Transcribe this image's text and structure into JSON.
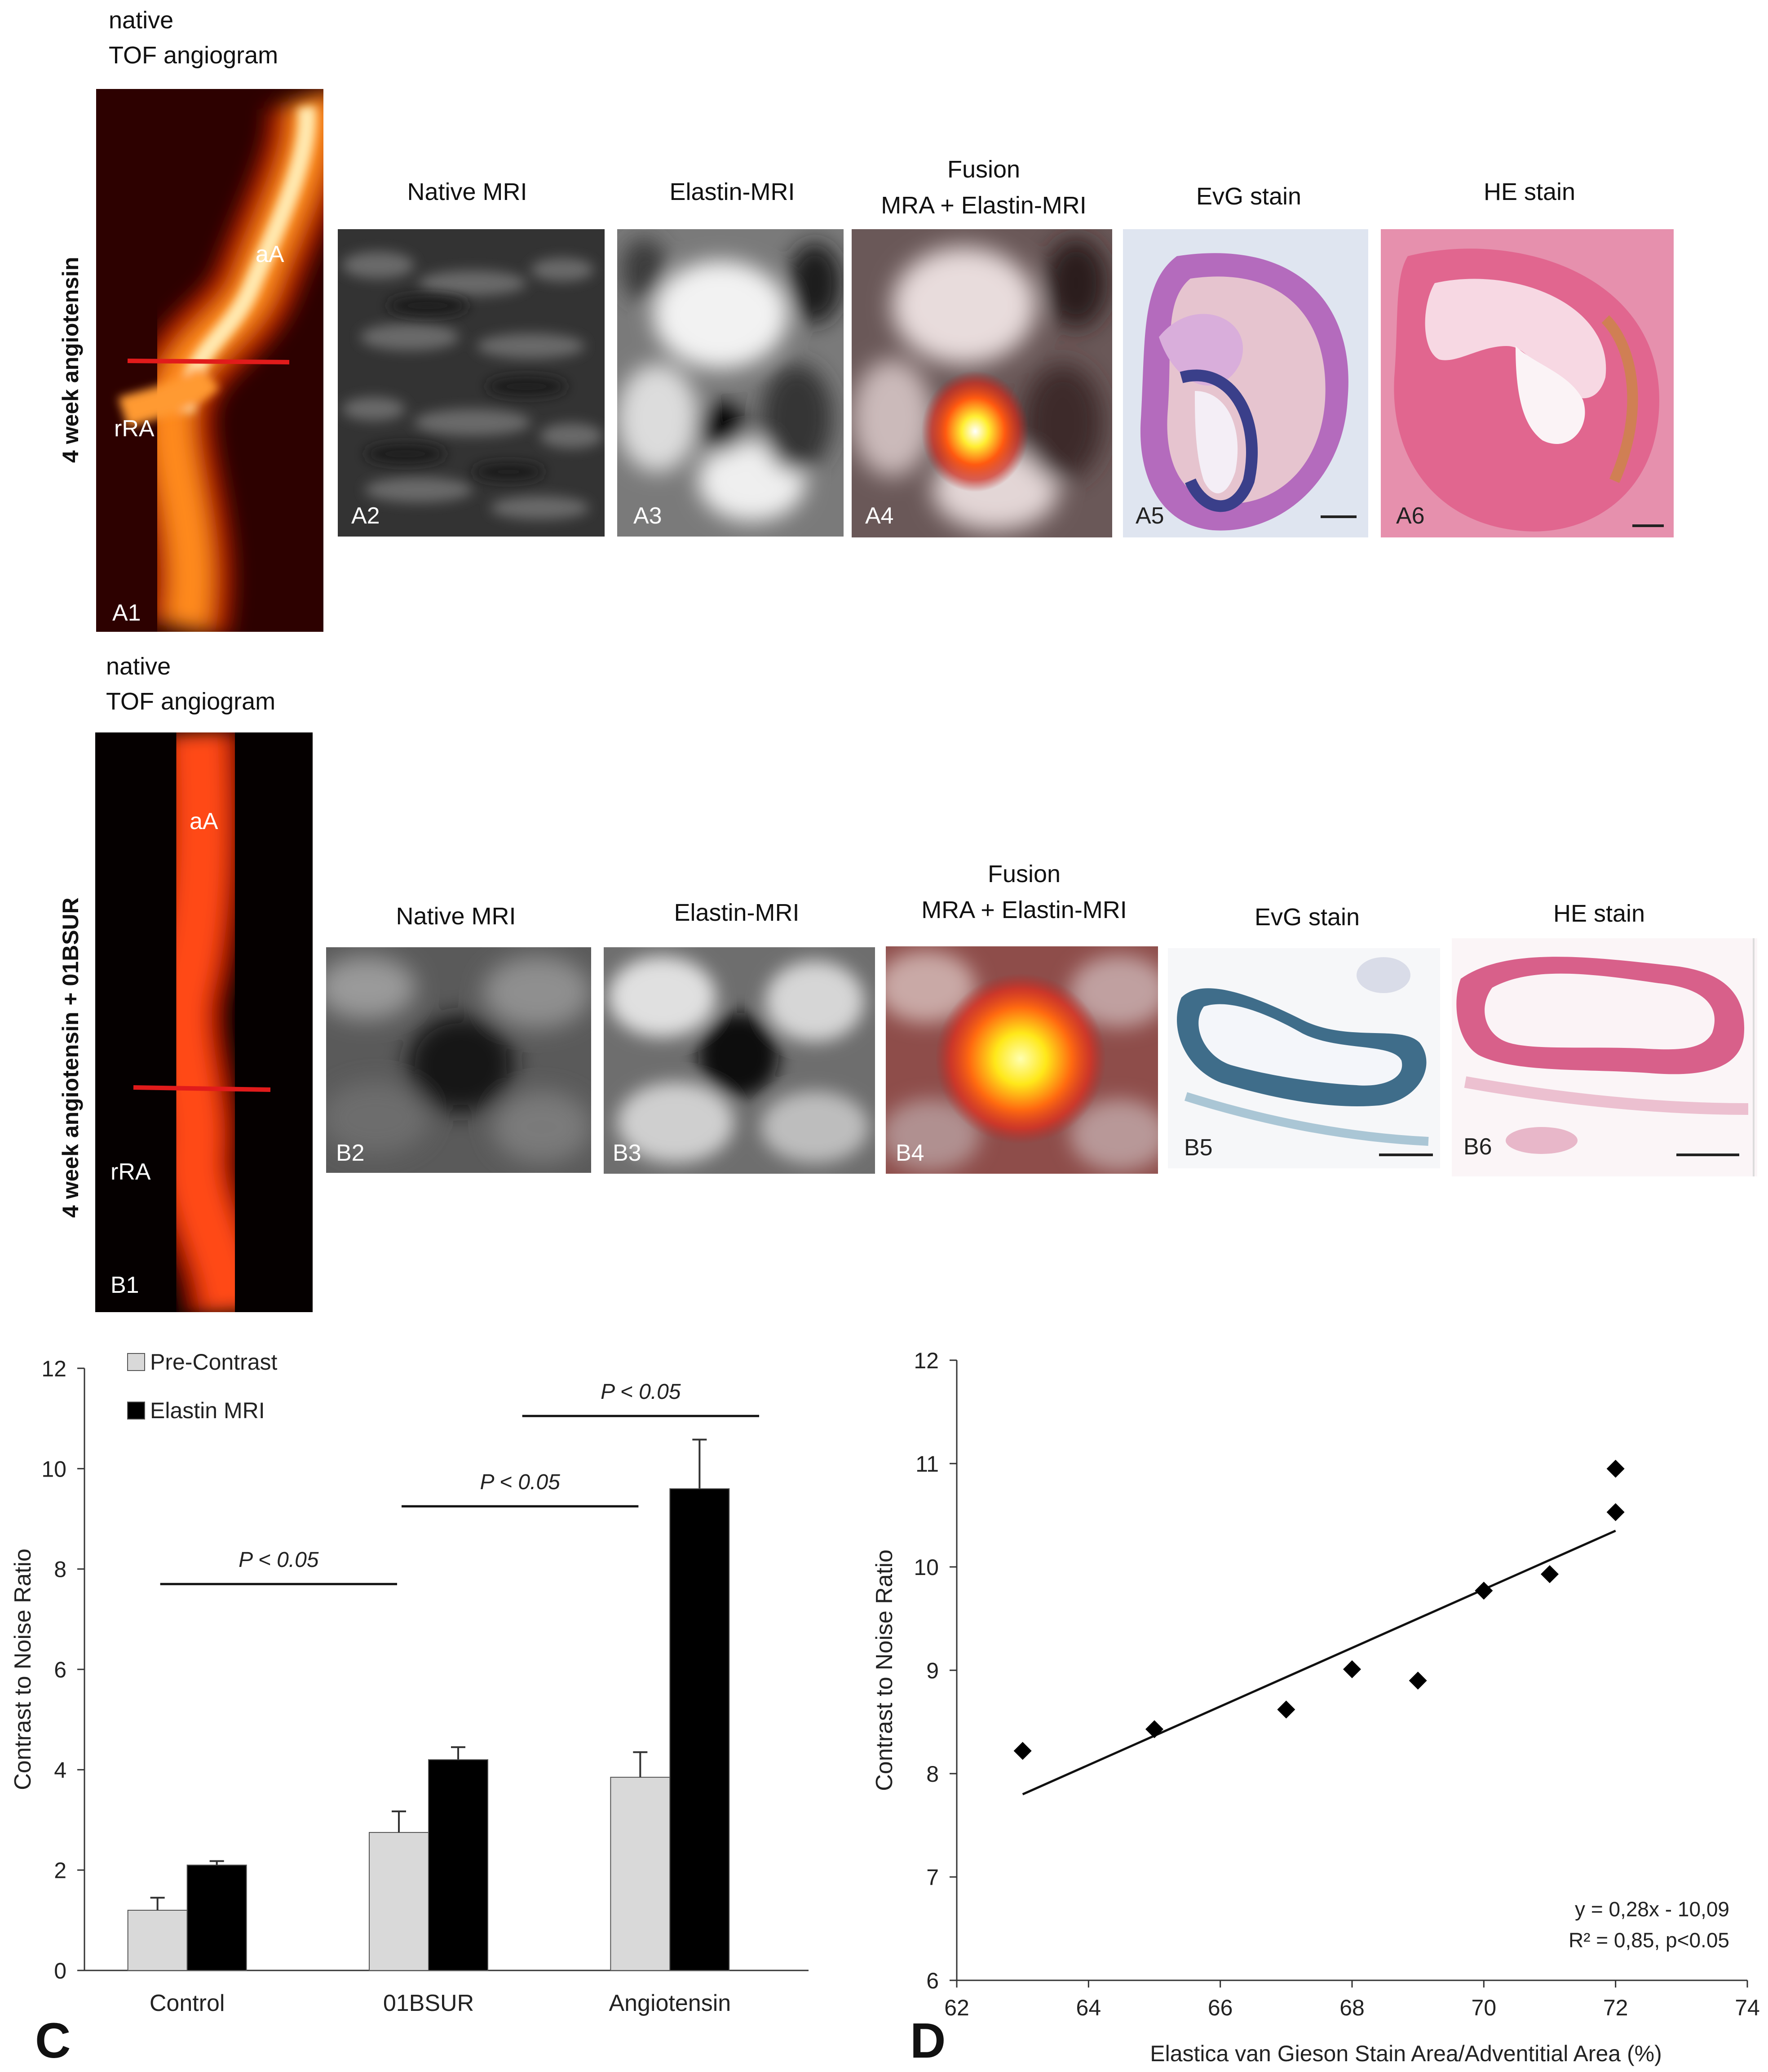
{
  "rowA": {
    "tof_line1": "native",
    "tof_line2": "TOF angiogram",
    "side_label": "4 week angiotensin",
    "label_aA": "aA",
    "label_rRA": "rRA",
    "panel_tags": [
      "A1",
      "A2",
      "A3",
      "A4",
      "A5",
      "A6"
    ],
    "titles": {
      "native": "Native MRI",
      "elastin": "Elastin-MRI",
      "fusion_line1": "Fusion",
      "fusion_line2": "MRA + Elastin-MRI",
      "evg": "EvG stain",
      "he": "HE stain"
    }
  },
  "rowB": {
    "tof_line1": "native",
    "tof_line2": "TOF angiogram",
    "side_label_plain": "4 week angiotensin + ",
    "side_label_bold": "01BSUR",
    "label_aA": "aA",
    "label_rRA": "rRA",
    "panel_tags": [
      "B1",
      "B2",
      "B3",
      "B4",
      "B5",
      "B6"
    ],
    "titles": {
      "native": "Native MRI",
      "elastin": "Elastin-MRI",
      "fusion_line1": "Fusion",
      "fusion_line2": "MRA + Elastin-MRI",
      "evg": "EvG stain",
      "he": "HE stain"
    }
  },
  "panel_letters": {
    "C": "C",
    "D": "D"
  },
  "chart_data": [
    {
      "type": "bar",
      "categories": [
        "Control",
        "01BSUR",
        "Angiotensin"
      ],
      "series": [
        {
          "name": "Pre-Contrast",
          "color": "#d9d9d9",
          "values": [
            1.2,
            2.75,
            3.85
          ],
          "errors": [
            0.25,
            0.42,
            0.5
          ]
        },
        {
          "name": "Elastin MRI",
          "color": "#000000",
          "values": [
            2.1,
            4.2,
            9.6
          ],
          "errors": [
            0.08,
            0.25,
            0.98
          ]
        }
      ],
      "ylabel": "Contrast to Noise Ratio",
      "ylim": [
        0,
        12
      ],
      "yticks": [
        0,
        2,
        4,
        6,
        8,
        10,
        12
      ],
      "legend_position": "top-left",
      "significance": [
        {
          "label": "P < 0.05",
          "from": 0,
          "to": 1,
          "level": 7.7
        },
        {
          "label": "P < 0.05",
          "from": 1,
          "to": 2,
          "level": 9.25
        },
        {
          "label": "P < 0.05",
          "from": 1.5,
          "to": 2.5,
          "level": 11.05
        }
      ]
    },
    {
      "type": "scatter",
      "x": [
        63,
        65,
        67,
        68,
        69,
        70,
        71,
        72,
        72
      ],
      "y": [
        8.22,
        8.43,
        8.62,
        9.01,
        8.9,
        9.77,
        9.93,
        10.53,
        10.95
      ],
      "trendline": {
        "x": [
          63,
          72
        ],
        "y": [
          7.8,
          10.35
        ]
      },
      "xlabel": "Elastica van Gieson Stain Area/Adventitial Area (%)",
      "ylabel": "Contrast to Noise Ratio",
      "xlim": [
        62,
        74
      ],
      "ylim": [
        6,
        12
      ],
      "xticks": [
        62,
        64,
        66,
        68,
        70,
        72,
        74
      ],
      "yticks": [
        6,
        7,
        8,
        9,
        10,
        11,
        12
      ],
      "annotation_line1": "y = 0,28x - 10,09",
      "annotation_line2": "R² = 0,85, p<0.05"
    }
  ]
}
